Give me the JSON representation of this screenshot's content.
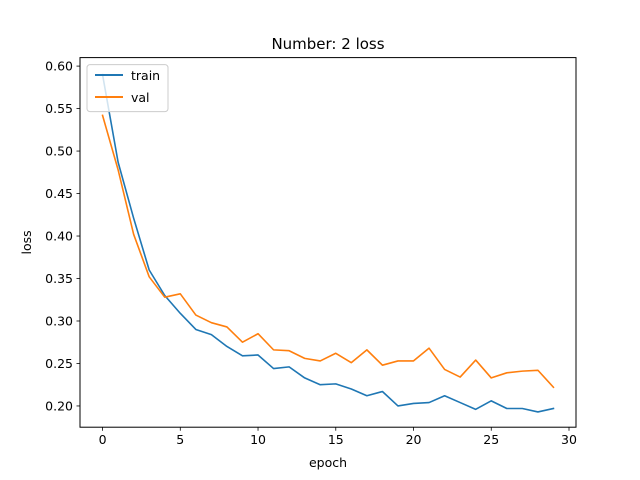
{
  "chart_data": {
    "type": "line",
    "title": "Number: 2 loss",
    "xlabel": "epoch",
    "ylabel": "loss",
    "xlim": [
      -1.45,
      30.45
    ],
    "ylim": [
      0.175,
      0.61
    ],
    "xticks": [
      0,
      5,
      10,
      15,
      20,
      25,
      30
    ],
    "yticks": [
      0.2,
      0.25,
      0.3,
      0.35,
      0.4,
      0.45,
      0.5,
      0.55,
      0.6
    ],
    "grid": false,
    "legend_position": "upper-left",
    "x": [
      0,
      1,
      2,
      3,
      4,
      5,
      6,
      7,
      8,
      9,
      10,
      11,
      12,
      13,
      14,
      15,
      16,
      17,
      18,
      19,
      20,
      21,
      22,
      23,
      24,
      25,
      26,
      27,
      28,
      29
    ],
    "series": [
      {
        "name": "train",
        "color": "#1f77b4",
        "values": [
          0.59,
          0.487,
          0.421,
          0.36,
          0.33,
          0.309,
          0.29,
          0.284,
          0.27,
          0.259,
          0.26,
          0.244,
          0.246,
          0.233,
          0.225,
          0.226,
          0.22,
          0.212,
          0.217,
          0.2,
          0.203,
          0.204,
          0.212,
          0.204,
          0.196,
          0.206,
          0.197,
          0.197,
          0.193,
          0.197
        ]
      },
      {
        "name": "val",
        "color": "#ff7f0e",
        "values": [
          0.542,
          0.478,
          0.402,
          0.352,
          0.328,
          0.332,
          0.307,
          0.298,
          0.293,
          0.275,
          0.285,
          0.266,
          0.265,
          0.256,
          0.253,
          0.262,
          0.251,
          0.266,
          0.248,
          0.253,
          0.253,
          0.268,
          0.243,
          0.234,
          0.254,
          0.233,
          0.239,
          0.241,
          0.242,
          0.222
        ]
      }
    ]
  }
}
